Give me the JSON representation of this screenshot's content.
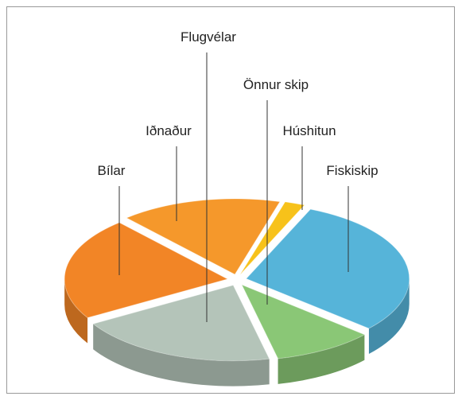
{
  "chart_data": {
    "type": "pie",
    "categories": [
      "Húshitun",
      "Fiskiskip",
      "Önnur skip",
      "Flugvélar",
      "Bílar",
      "Iðnaður"
    ],
    "values": [
      2,
      30,
      10,
      20,
      22,
      16
    ],
    "colors": [
      "#f7c21a",
      "#56b4d9",
      "#8ac776",
      "#b4c4b9",
      "#f28526",
      "#f5982b"
    ]
  }
}
